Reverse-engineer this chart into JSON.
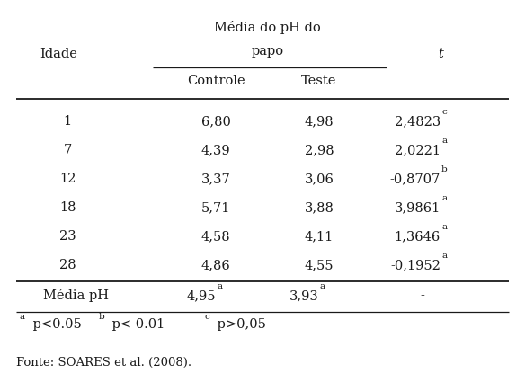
{
  "title_line1": "Média do pH do",
  "title_line2": "papo",
  "col_idade": "Idade",
  "col_controle": "Controle",
  "col_teste": "Teste",
  "col_t": "t",
  "rows": [
    {
      "idade": "1",
      "controle": "6,80",
      "teste": "4,98",
      "t": "2,4823",
      "t_sup": "c"
    },
    {
      "idade": "7",
      "controle": "4,39",
      "teste": "2,98",
      "t": "2,0221",
      "t_sup": "a"
    },
    {
      "idade": "12",
      "controle": "3,37",
      "teste": "3,06",
      "t": "-0,8707",
      "t_sup": "b"
    },
    {
      "idade": "18",
      "controle": "5,71",
      "teste": "3,88",
      "t": "3,9861",
      "t_sup": "a"
    },
    {
      "idade": "23",
      "controle": "4,58",
      "teste": "4,11",
      "t": "1,3646",
      "t_sup": "a"
    },
    {
      "idade": "28",
      "controle": "4,86",
      "teste": "4,55",
      "t": "-0,1952",
      "t_sup": "a"
    }
  ],
  "footer": {
    "label": "Média pH",
    "controle": "4,95",
    "controle_sup": "a",
    "teste": "3,93",
    "teste_sup": "a",
    "t": "-"
  },
  "fonte": "Fonte: SOARES et al. (2008).",
  "bg_color": "#ffffff",
  "text_color": "#1a1a1a",
  "fs": 10.5,
  "fs_sup": 7.5,
  "fs_fonte": 9.5
}
